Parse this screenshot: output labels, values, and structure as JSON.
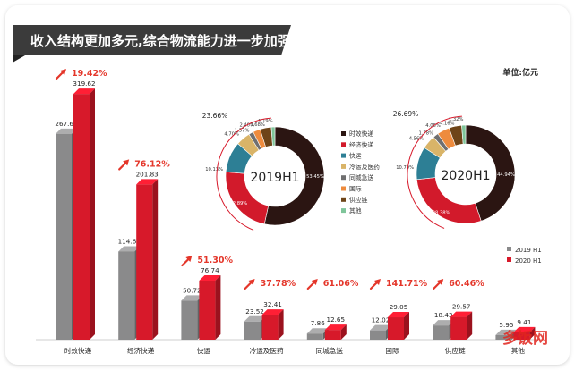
{
  "header": {
    "title": "收入结构更加多元,综合物流能力进一步加强",
    "unit": "单位:亿元"
  },
  "colors": {
    "title_bg": "#3a3a3a",
    "accent_red": "#d7192a",
    "gray_bar": "#8a8a8b",
    "growth_red": "#e4362a"
  },
  "chart_data": [
    {
      "type": "bar",
      "categories": [
        "时效快递",
        "经济快递",
        "快运",
        "冷运及医药",
        "同城急送",
        "国际",
        "供应链",
        "其他"
      ],
      "series": [
        {
          "name": "2019 H1",
          "values": [
            267.65,
            114.6,
            50.72,
            23.52,
            7.86,
            12.02,
            18.43,
            5.95
          ]
        },
        {
          "name": "2020 H1",
          "values": [
            319.62,
            201.83,
            76.74,
            32.41,
            12.65,
            29.05,
            29.57,
            9.41
          ]
        }
      ],
      "growth": [
        "19.42%",
        "76.12%",
        "51.30%",
        "37.78%",
        "61.06%",
        "141.71%",
        "60.46%",
        ""
      ],
      "legend_position": "right"
    },
    {
      "type": "pie",
      "title": "2019H1",
      "labels": [
        "时效快递",
        "经济快递",
        "快运",
        "冷运及医药",
        "同城急送",
        "国际",
        "供应链",
        "其他"
      ],
      "values": [
        53.45,
        22.89,
        10.13,
        4.7,
        1.57,
        2.4,
        3.68,
        1.19
      ],
      "value_labels": [
        "53.45%",
        "22.89%",
        "10.13%",
        "4.70%",
        "1.57%",
        "2.40%",
        "3.68%",
        "1.19%"
      ],
      "outer_label": "23.66%",
      "colors": [
        "#2b1512",
        "#d21a2b",
        "#2d7f95",
        "#d9b468",
        "#6f6f70",
        "#ee8b3d",
        "#6e4418",
        "#7fc59a"
      ]
    },
    {
      "type": "pie",
      "title": "2020H1",
      "labels": [
        "时效快递",
        "经济快递",
        "快运",
        "冷运及医药",
        "同城急送",
        "国际",
        "供应链",
        "其他"
      ],
      "values": [
        44.94,
        28.38,
        10.79,
        4.56,
        1.78,
        4.08,
        4.16,
        1.32
      ],
      "value_labels": [
        "44.94%",
        "28.38%",
        "10.79%",
        "4.56%",
        "1.78%",
        "4.08%",
        "4.16%",
        "1.32%"
      ],
      "outer_label": "26.69%",
      "colors": [
        "#2b1512",
        "#d21a2b",
        "#2d7f95",
        "#d9b468",
        "#6f6f70",
        "#ee8b3d",
        "#6e4418",
        "#7fc59a"
      ]
    }
  ],
  "pie_legend": [
    "时效快递",
    "经济快递",
    "快运",
    "冷运及医药",
    "同城急送",
    "国际",
    "供应链",
    "其他"
  ],
  "watermark": "多饭网"
}
